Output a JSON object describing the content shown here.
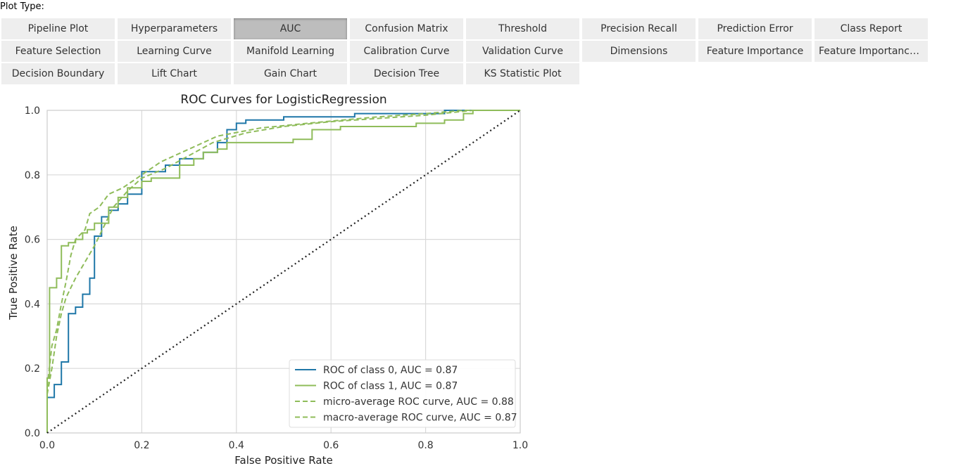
{
  "plot_type_label": "Plot Type:",
  "active_button": "AUC",
  "buttons": [
    "Pipeline Plot",
    "Hyperparameters",
    "AUC",
    "Confusion Matrix",
    "Threshold",
    "Precision Recall",
    "Prediction Error",
    "Class Report",
    "Feature Selection",
    "Learning Curve",
    "Manifold Learning",
    "Calibration Curve",
    "Validation Curve",
    "Dimensions",
    "Feature Importance",
    "Feature Importance...",
    "Decision Boundary",
    "Lift Chart",
    "Gain Chart",
    "Decision Tree",
    "KS Statistic Plot"
  ],
  "colors": {
    "class0": "#1f77a8",
    "class1": "#8fbc5a",
    "grid": "#d9d9d9",
    "diagonal": "#222222"
  },
  "chart_data": {
    "type": "line",
    "title": "ROC Curves for LogisticRegression",
    "xlabel": "False Positive Rate",
    "ylabel": "True Positive Rate",
    "xlim": [
      0,
      1
    ],
    "ylim": [
      0,
      1
    ],
    "xticks": [
      "0.0",
      "0.2",
      "0.4",
      "0.6",
      "0.8",
      "1.0"
    ],
    "yticks": [
      "0.0",
      "0.2",
      "0.4",
      "0.6",
      "0.8",
      "1.0"
    ],
    "grid": true,
    "legend_position": "bottom-right",
    "series": [
      {
        "name": "ROC of class 0, AUC = 0.87",
        "style": "solid",
        "color": "#1f77a8",
        "points": [
          [
            0,
            0
          ],
          [
            0,
            0.11
          ],
          [
            0.015,
            0.11
          ],
          [
            0.015,
            0.15
          ],
          [
            0.03,
            0.15
          ],
          [
            0.03,
            0.22
          ],
          [
            0.045,
            0.22
          ],
          [
            0.045,
            0.37
          ],
          [
            0.06,
            0.37
          ],
          [
            0.06,
            0.39
          ],
          [
            0.075,
            0.39
          ],
          [
            0.075,
            0.43
          ],
          [
            0.09,
            0.43
          ],
          [
            0.09,
            0.48
          ],
          [
            0.1,
            0.48
          ],
          [
            0.1,
            0.61
          ],
          [
            0.115,
            0.61
          ],
          [
            0.115,
            0.67
          ],
          [
            0.13,
            0.67
          ],
          [
            0.13,
            0.69
          ],
          [
            0.15,
            0.69
          ],
          [
            0.15,
            0.71
          ],
          [
            0.17,
            0.71
          ],
          [
            0.17,
            0.74
          ],
          [
            0.2,
            0.74
          ],
          [
            0.2,
            0.81
          ],
          [
            0.25,
            0.81
          ],
          [
            0.25,
            0.83
          ],
          [
            0.28,
            0.83
          ],
          [
            0.28,
            0.85
          ],
          [
            0.33,
            0.85
          ],
          [
            0.33,
            0.87
          ],
          [
            0.36,
            0.87
          ],
          [
            0.36,
            0.9
          ],
          [
            0.38,
            0.9
          ],
          [
            0.38,
            0.94
          ],
          [
            0.4,
            0.94
          ],
          [
            0.4,
            0.96
          ],
          [
            0.42,
            0.96
          ],
          [
            0.42,
            0.97
          ],
          [
            0.5,
            0.97
          ],
          [
            0.5,
            0.98
          ],
          [
            0.65,
            0.98
          ],
          [
            0.65,
            0.99
          ],
          [
            0.84,
            0.99
          ],
          [
            0.84,
            1.0
          ],
          [
            1.0,
            1.0
          ]
        ]
      },
      {
        "name": "ROC of class 1, AUC = 0.87",
        "style": "solid",
        "color": "#8fbc5a",
        "points": [
          [
            0,
            0
          ],
          [
            0,
            0.17
          ],
          [
            0.005,
            0.17
          ],
          [
            0.005,
            0.45
          ],
          [
            0.02,
            0.45
          ],
          [
            0.02,
            0.48
          ],
          [
            0.03,
            0.48
          ],
          [
            0.03,
            0.58
          ],
          [
            0.045,
            0.58
          ],
          [
            0.045,
            0.59
          ],
          [
            0.06,
            0.59
          ],
          [
            0.06,
            0.6
          ],
          [
            0.075,
            0.6
          ],
          [
            0.075,
            0.62
          ],
          [
            0.085,
            0.62
          ],
          [
            0.085,
            0.63
          ],
          [
            0.1,
            0.63
          ],
          [
            0.1,
            0.65
          ],
          [
            0.13,
            0.65
          ],
          [
            0.13,
            0.7
          ],
          [
            0.15,
            0.7
          ],
          [
            0.15,
            0.73
          ],
          [
            0.17,
            0.73
          ],
          [
            0.17,
            0.76
          ],
          [
            0.2,
            0.76
          ],
          [
            0.2,
            0.78
          ],
          [
            0.22,
            0.78
          ],
          [
            0.22,
            0.79
          ],
          [
            0.28,
            0.79
          ],
          [
            0.28,
            0.83
          ],
          [
            0.31,
            0.83
          ],
          [
            0.31,
            0.85
          ],
          [
            0.33,
            0.85
          ],
          [
            0.33,
            0.87
          ],
          [
            0.36,
            0.87
          ],
          [
            0.36,
            0.88
          ],
          [
            0.38,
            0.88
          ],
          [
            0.38,
            0.9
          ],
          [
            0.52,
            0.9
          ],
          [
            0.52,
            0.91
          ],
          [
            0.56,
            0.91
          ],
          [
            0.56,
            0.94
          ],
          [
            0.62,
            0.94
          ],
          [
            0.62,
            0.95
          ],
          [
            0.78,
            0.95
          ],
          [
            0.78,
            0.96
          ],
          [
            0.84,
            0.96
          ],
          [
            0.84,
            0.97
          ],
          [
            0.88,
            0.97
          ],
          [
            0.88,
            0.99
          ],
          [
            0.9,
            0.99
          ],
          [
            0.9,
            1.0
          ],
          [
            1.0,
            1.0
          ]
        ]
      },
      {
        "name": "micro-average ROC curve, AUC = 0.88",
        "style": "dashed",
        "color": "#8fbc5a",
        "points": [
          [
            0,
            0
          ],
          [
            0,
            0.14
          ],
          [
            0.01,
            0.27
          ],
          [
            0.02,
            0.32
          ],
          [
            0.03,
            0.4
          ],
          [
            0.04,
            0.47
          ],
          [
            0.05,
            0.55
          ],
          [
            0.06,
            0.6
          ],
          [
            0.08,
            0.63
          ],
          [
            0.09,
            0.68
          ],
          [
            0.11,
            0.7
          ],
          [
            0.13,
            0.74
          ],
          [
            0.16,
            0.76
          ],
          [
            0.2,
            0.8
          ],
          [
            0.24,
            0.84
          ],
          [
            0.3,
            0.88
          ],
          [
            0.36,
            0.92
          ],
          [
            0.45,
            0.945
          ],
          [
            0.55,
            0.96
          ],
          [
            0.7,
            0.98
          ],
          [
            0.8,
            0.99
          ],
          [
            0.88,
            1.0
          ],
          [
            1.0,
            1.0
          ]
        ]
      },
      {
        "name": "macro-average ROC curve, AUC = 0.87",
        "style": "dashed",
        "color": "#8fbc5a",
        "points": [
          [
            0,
            0
          ],
          [
            0,
            0.12
          ],
          [
            0.01,
            0.2
          ],
          [
            0.02,
            0.3
          ],
          [
            0.03,
            0.37
          ],
          [
            0.04,
            0.42
          ],
          [
            0.06,
            0.48
          ],
          [
            0.08,
            0.53
          ],
          [
            0.1,
            0.58
          ],
          [
            0.12,
            0.64
          ],
          [
            0.14,
            0.7
          ],
          [
            0.17,
            0.75
          ],
          [
            0.2,
            0.79
          ],
          [
            0.25,
            0.82
          ],
          [
            0.3,
            0.86
          ],
          [
            0.35,
            0.9
          ],
          [
            0.42,
            0.93
          ],
          [
            0.5,
            0.95
          ],
          [
            0.6,
            0.965
          ],
          [
            0.7,
            0.975
          ],
          [
            0.8,
            0.985
          ],
          [
            0.9,
            1.0
          ],
          [
            1.0,
            1.0
          ]
        ]
      },
      {
        "name": "chance",
        "style": "dotted",
        "color": "#222222",
        "points": [
          [
            0,
            0
          ],
          [
            1,
            1
          ]
        ]
      }
    ],
    "legend": [
      "ROC of class 0, AUC = 0.87",
      "ROC of class 1, AUC = 0.87",
      "micro-average ROC curve, AUC = 0.88",
      "macro-average ROC curve, AUC = 0.87"
    ]
  }
}
